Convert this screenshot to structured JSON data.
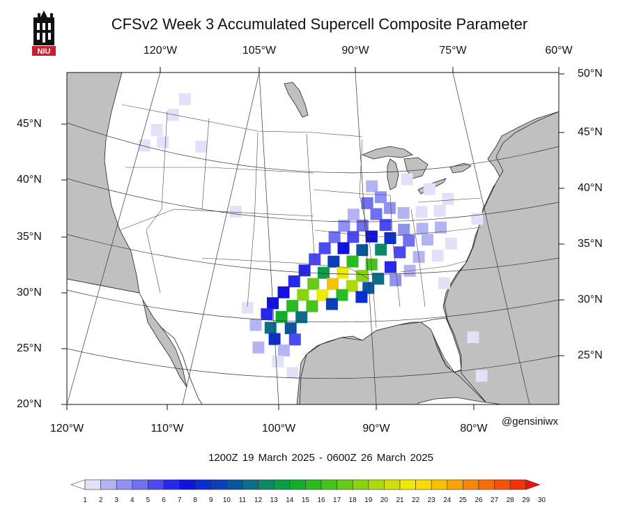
{
  "title": "CFSv2 Week 3 Accumulated Supercell Composite Parameter",
  "logo": {
    "text": "NIU",
    "colors": {
      "tower": "#111111",
      "band": "#cc1f2d"
    }
  },
  "credit": "@gensiniwx",
  "date_range": "1200Z 19  March  2025  - 0600Z 26  March  2025",
  "axes": {
    "top_lon_labels": [
      "120°W",
      "105°W",
      "90°W",
      "75°W",
      "60°W"
    ],
    "bottom_lon_labels": [
      "120°W",
      "110°W",
      "100°W",
      "90°W",
      "80°W"
    ],
    "left_lat_labels": [
      "20°N",
      "25°N",
      "30°N",
      "35°N",
      "40°N",
      "45°N"
    ],
    "right_lat_labels": [
      "25°N",
      "30°N",
      "35°N",
      "40°N",
      "45°N",
      "50°N"
    ]
  },
  "colors": {
    "land": "#ffffff",
    "ocean": "#c0c0c0",
    "lines": "#222222"
  },
  "colorbar": {
    "labels": [
      "1",
      "2",
      "3",
      "4",
      "5",
      "6",
      "7",
      "8",
      "9",
      "10",
      "11",
      "12",
      "13",
      "14",
      "15",
      "16",
      "17",
      "18",
      "19",
      "20",
      "21",
      "22",
      "23",
      "24",
      "25",
      "26",
      "27",
      "28",
      "29",
      "30"
    ],
    "colors": [
      "#ffffff",
      "#e1e1f9",
      "#b4b4f5",
      "#9191f2",
      "#7171ef",
      "#4a4af0",
      "#2828ec",
      "#1212df",
      "#0a2ecf",
      "#0a3fb8",
      "#0b559d",
      "#0c6f85",
      "#0e8866",
      "#0c9d46",
      "#12ad2d",
      "#2bbb21",
      "#47c41c",
      "#68cb17",
      "#8bd213",
      "#aed80f",
      "#cfe00c",
      "#eeea08",
      "#f9dc05",
      "#f9c103",
      "#f8a404",
      "#f78806",
      "#f66e09",
      "#f4520b",
      "#f2330c",
      "#ef1111"
    ]
  },
  "field": {
    "description_units": "accumulated supercell composite parameter",
    "cells": [
      {
        "lon": -113.5,
        "lat": 46.5,
        "v": 2
      },
      {
        "lon": -114.5,
        "lat": 45.0,
        "v": 2
      },
      {
        "lon": -116.0,
        "lat": 43.5,
        "v": 2
      },
      {
        "lon": -117.0,
        "lat": 42.0,
        "v": 2
      },
      {
        "lon": -115.0,
        "lat": 42.5,
        "v": 2
      },
      {
        "lon": -110.5,
        "lat": 42.5,
        "v": 2
      },
      {
        "lon": -105.5,
        "lat": 37.0,
        "v": 2
      },
      {
        "lon": -90.5,
        "lat": 39.5,
        "v": 3
      },
      {
        "lon": -89.5,
        "lat": 38.5,
        "v": 4
      },
      {
        "lon": -91.0,
        "lat": 38.0,
        "v": 5
      },
      {
        "lon": -88.5,
        "lat": 37.5,
        "v": 4
      },
      {
        "lon": -92.5,
        "lat": 37.0,
        "v": 3
      },
      {
        "lon": -90.0,
        "lat": 37.0,
        "v": 5
      },
      {
        "lon": -87.0,
        "lat": 37.0,
        "v": 3
      },
      {
        "lon": -85.0,
        "lat": 37.0,
        "v": 2
      },
      {
        "lon": -83.0,
        "lat": 37.0,
        "v": 2
      },
      {
        "lon": -82.0,
        "lat": 38.0,
        "v": 2
      },
      {
        "lon": -93.5,
        "lat": 36.0,
        "v": 4
      },
      {
        "lon": -91.5,
        "lat": 36.0,
        "v": 5
      },
      {
        "lon": -89.0,
        "lat": 36.0,
        "v": 6
      },
      {
        "lon": -87.0,
        "lat": 35.5,
        "v": 4
      },
      {
        "lon": -85.0,
        "lat": 35.5,
        "v": 3
      },
      {
        "lon": -83.0,
        "lat": 35.5,
        "v": 3
      },
      {
        "lon": -94.5,
        "lat": 35.0,
        "v": 5
      },
      {
        "lon": -92.5,
        "lat": 35.0,
        "v": 6
      },
      {
        "lon": -90.5,
        "lat": 35.0,
        "v": 8
      },
      {
        "lon": -88.5,
        "lat": 34.8,
        "v": 9
      },
      {
        "lon": -86.5,
        "lat": 34.5,
        "v": 5
      },
      {
        "lon": -84.5,
        "lat": 34.5,
        "v": 3
      },
      {
        "lon": -95.5,
        "lat": 34.0,
        "v": 6
      },
      {
        "lon": -93.5,
        "lat": 34.0,
        "v": 8
      },
      {
        "lon": -91.5,
        "lat": 33.8,
        "v": 11
      },
      {
        "lon": -89.5,
        "lat": 33.8,
        "v": 13
      },
      {
        "lon": -87.5,
        "lat": 33.5,
        "v": 6
      },
      {
        "lon": -85.5,
        "lat": 33.0,
        "v": 3
      },
      {
        "lon": -83.5,
        "lat": 33.0,
        "v": 2
      },
      {
        "lon": -96.5,
        "lat": 33.0,
        "v": 6
      },
      {
        "lon": -94.5,
        "lat": 32.8,
        "v": 10
      },
      {
        "lon": -92.5,
        "lat": 32.8,
        "v": 16
      },
      {
        "lon": -90.5,
        "lat": 32.5,
        "v": 17
      },
      {
        "lon": -88.5,
        "lat": 32.2,
        "v": 7
      },
      {
        "lon": -86.5,
        "lat": 31.8,
        "v": 3
      },
      {
        "lon": -97.5,
        "lat": 32.0,
        "v": 7
      },
      {
        "lon": -95.5,
        "lat": 31.8,
        "v": 14
      },
      {
        "lon": -93.5,
        "lat": 31.8,
        "v": 22
      },
      {
        "lon": -91.5,
        "lat": 31.5,
        "v": 19
      },
      {
        "lon": -89.8,
        "lat": 31.2,
        "v": 12
      },
      {
        "lon": -88.0,
        "lat": 31.0,
        "v": 4
      },
      {
        "lon": -98.5,
        "lat": 31.0,
        "v": 7
      },
      {
        "lon": -96.5,
        "lat": 30.8,
        "v": 18
      },
      {
        "lon": -94.5,
        "lat": 30.8,
        "v": 24
      },
      {
        "lon": -92.5,
        "lat": 30.6,
        "v": 20
      },
      {
        "lon": -90.8,
        "lat": 30.4,
        "v": 11
      },
      {
        "lon": -99.5,
        "lat": 30.0,
        "v": 8
      },
      {
        "lon": -97.5,
        "lat": 29.8,
        "v": 19
      },
      {
        "lon": -95.5,
        "lat": 29.8,
        "v": 22
      },
      {
        "lon": -93.5,
        "lat": 29.8,
        "v": 16
      },
      {
        "lon": -91.5,
        "lat": 29.6,
        "v": 9
      },
      {
        "lon": -100.5,
        "lat": 29.0,
        "v": 8
      },
      {
        "lon": -98.5,
        "lat": 28.8,
        "v": 16
      },
      {
        "lon": -96.5,
        "lat": 28.8,
        "v": 17
      },
      {
        "lon": -94.5,
        "lat": 29.0,
        "v": 10
      },
      {
        "lon": -101.0,
        "lat": 28.0,
        "v": 7
      },
      {
        "lon": -99.5,
        "lat": 27.8,
        "v": 15
      },
      {
        "lon": -97.5,
        "lat": 27.8,
        "v": 12
      },
      {
        "lon": -100.5,
        "lat": 26.8,
        "v": 12
      },
      {
        "lon": -98.5,
        "lat": 26.8,
        "v": 11
      },
      {
        "lon": -100.0,
        "lat": 25.8,
        "v": 9
      },
      {
        "lon": -98.0,
        "lat": 25.8,
        "v": 6
      },
      {
        "lon": -101.5,
        "lat": 25.0,
        "v": 3
      },
      {
        "lon": -99.0,
        "lat": 24.8,
        "v": 3
      },
      {
        "lon": -99.5,
        "lat": 23.8,
        "v": 2
      },
      {
        "lon": -98.0,
        "lat": 22.8,
        "v": 2
      },
      {
        "lon": -102.0,
        "lat": 27.0,
        "v": 3
      },
      {
        "lon": -103.0,
        "lat": 28.5,
        "v": 2
      },
      {
        "lon": -80.5,
        "lat": 25.5,
        "v": 2
      },
      {
        "lon": -83.0,
        "lat": 30.5,
        "v": 2
      },
      {
        "lon": -82.0,
        "lat": 34.0,
        "v": 2
      },
      {
        "lon": -79.0,
        "lat": 36.0,
        "v": 2
      },
      {
        "lon": -84.0,
        "lat": 39.0,
        "v": 2
      },
      {
        "lon": -86.5,
        "lat": 40.0,
        "v": 2
      },
      {
        "lon": -80.0,
        "lat": 22.0,
        "v": 2
      }
    ]
  }
}
